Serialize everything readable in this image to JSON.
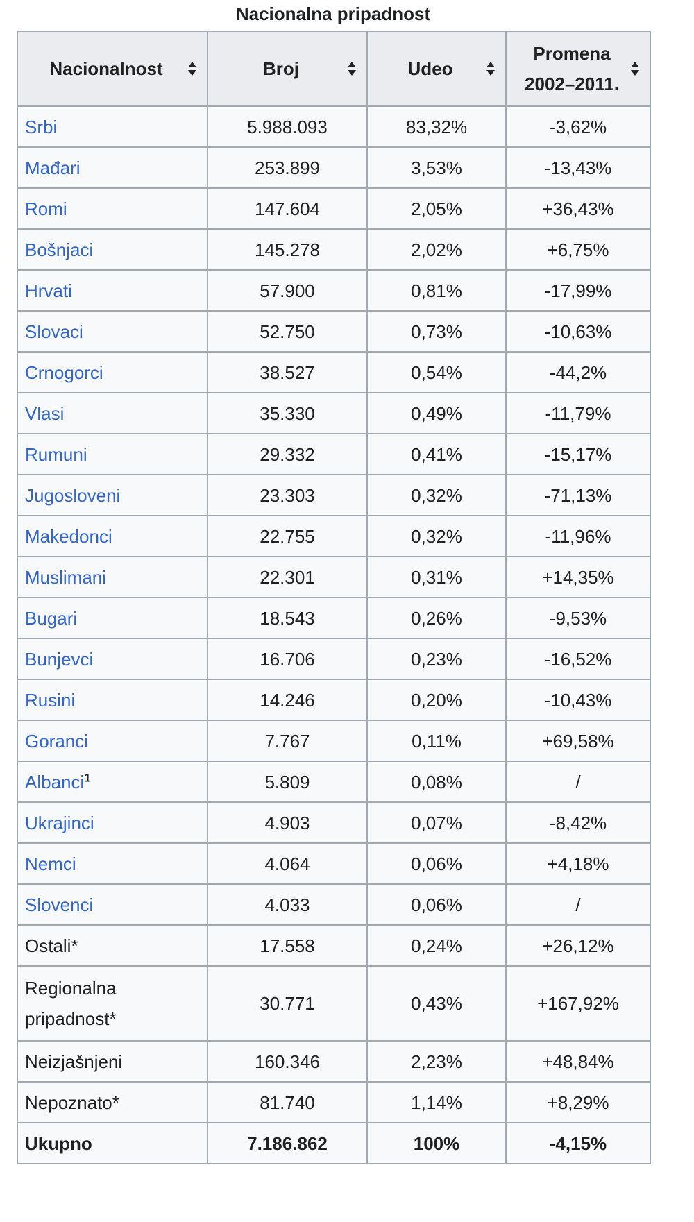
{
  "caption": "Nacionalna pripadnost",
  "headers": {
    "nationality": "Nacionalnost",
    "count": "Broj",
    "share": "Udeo",
    "change_line1": "Promena",
    "change_line2": "2002–2011."
  },
  "sort_icon": "sort-up-down-icon",
  "link_color": "#3366cc",
  "rows": [
    {
      "name": "Srbi",
      "count": "5.988.093",
      "share": "83,32%",
      "change": "-3,62%"
    },
    {
      "name": "Mađari",
      "count": "253.899",
      "share": "3,53%",
      "change": "-13,43%"
    },
    {
      "name": "Romi",
      "count": "147.604",
      "share": "2,05%",
      "change": "+36,43%"
    },
    {
      "name": "Bošnjaci",
      "count": "145.278",
      "share": "2,02%",
      "change": "+6,75%"
    },
    {
      "name": "Hrvati",
      "count": "57.900",
      "share": "0,81%",
      "change": "-17,99%"
    },
    {
      "name": "Slovaci",
      "count": "52.750",
      "share": "0,73%",
      "change": "-10,63%"
    },
    {
      "name": "Crnogorci",
      "count": "38.527",
      "share": "0,54%",
      "change": "-44,2%"
    },
    {
      "name": "Vlasi",
      "count": "35.330",
      "share": "0,49%",
      "change": "-11,79%"
    },
    {
      "name": "Rumuni",
      "count": "29.332",
      "share": "0,41%",
      "change": "-15,17%"
    },
    {
      "name": "Jugosloveni",
      "count": "23.303",
      "share": "0,32%",
      "change": "-71,13%"
    },
    {
      "name": "Makedonci",
      "count": "22.755",
      "share": "0,32%",
      "change": "-11,96%"
    },
    {
      "name": "Muslimani",
      "count": "22.301",
      "share": "0,31%",
      "change": "+14,35%"
    },
    {
      "name": "Bugari",
      "count": "18.543",
      "share": "0,26%",
      "change": "-9,53%"
    },
    {
      "name": "Bunjevci",
      "count": "16.706",
      "share": "0,23%",
      "change": "-16,52%"
    },
    {
      "name": "Rusini",
      "count": "14.246",
      "share": "0,20%",
      "change": "-10,43%"
    },
    {
      "name": "Goranci",
      "count": "7.767",
      "share": "0,11%",
      "change": "+69,58%"
    },
    {
      "name": "Albanci",
      "sup": "1",
      "count": "5.809",
      "share": "0,08%",
      "change": "/"
    },
    {
      "name": "Ukrajinci",
      "count": "4.903",
      "share": "0,07%",
      "change": "-8,42%"
    },
    {
      "name": "Nemci",
      "count": "4.064",
      "share": "0,06%",
      "change": "+4,18%"
    },
    {
      "name": "Slovenci",
      "count": "4.033",
      "share": "0,06%",
      "change": "/"
    }
  ],
  "other_rows": [
    {
      "name": "Ostali*",
      "count": "17.558",
      "share": "0,24%",
      "change": "+26,12%"
    },
    {
      "name_line1": "Regionalna",
      "name_line2": "pripadnost*",
      "count": "30.771",
      "share": "0,43%",
      "change": "+167,92%"
    },
    {
      "name": "Neizjašnjeni",
      "count": "160.346",
      "share": "2,23%",
      "change": "+48,84%"
    },
    {
      "name": "Nepoznato*",
      "count": "81.740",
      "share": "1,14%",
      "change": "+8,29%"
    }
  ],
  "total": {
    "name": "Ukupno",
    "count": "7.186.862",
    "share": "100%",
    "change": "-4,15%"
  }
}
